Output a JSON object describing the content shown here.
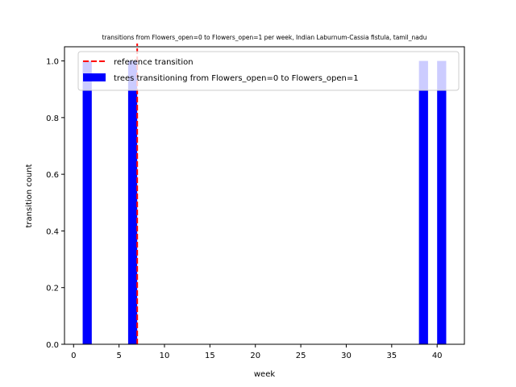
{
  "chart_data": {
    "type": "bar",
    "title": "transitions from Flowers_open=0 to Flowers_open=1 per week, Indian Laburnum-Cassia fistula, tamil_nadu",
    "xlabel": "week",
    "ylabel": "transition count",
    "xlim": [
      -1,
      43
    ],
    "ylim": [
      0,
      1.05
    ],
    "xticks": [
      0,
      5,
      10,
      15,
      20,
      25,
      30,
      35,
      40
    ],
    "yticks": [
      0.0,
      0.2,
      0.4,
      0.6,
      0.8,
      1.0
    ],
    "xtick_labels": [
      "0",
      "5",
      "10",
      "15",
      "20",
      "25",
      "30",
      "35",
      "40"
    ],
    "ytick_labels": [
      "0.0",
      "0.2",
      "0.4",
      "0.6",
      "0.8",
      "1.0"
    ],
    "bar_width_weeks": 1,
    "series": [
      {
        "name": "trees transitioning from Flowers_open=0 to Flowers_open=1",
        "color": "#0000ff",
        "x": [
          1.5,
          6.5,
          38.5,
          40.5
        ],
        "values": [
          1,
          1,
          1,
          1
        ]
      }
    ],
    "reference_line": {
      "name": "reference transition",
      "x": 7,
      "color": "#ff0000",
      "style": "dashed"
    },
    "legend": {
      "placement": "top-center",
      "entries": [
        "reference transition",
        "trees transitioning from Flowers_open=0 to Flowers_open=1"
      ]
    },
    "grid": false
  }
}
